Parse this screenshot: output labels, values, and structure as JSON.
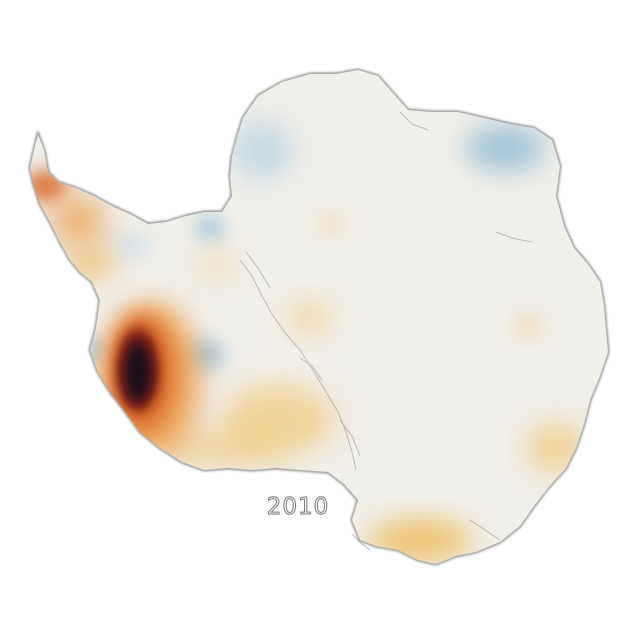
{
  "map": {
    "year": "2010",
    "colors": {
      "neutral": "#f1efe9",
      "gain": "#7fb3d3",
      "loss_light": "#f2c572",
      "loss_mid": "#d9682a",
      "loss_strong": "#7a1d12",
      "loss_extreme": "#1f0f1a",
      "coast_shadow": "#5a5a5a"
    }
  }
}
